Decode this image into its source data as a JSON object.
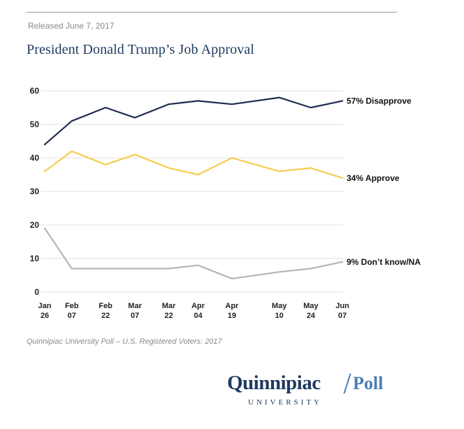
{
  "header": {
    "released": "Released June 7, 2017",
    "title": "President Donald Trump’s Job Approval"
  },
  "footer": {
    "source": "Quinnipiac University Poll – U.S. Registered Voters: 2017",
    "logo_word": "Quinnipiac",
    "logo_poll": "Poll",
    "logo_sub": "UNIVERSITY"
  },
  "colors": {
    "disapprove": "#1f2d4f",
    "approve": "#f6cd4c",
    "dontknow": "#b5b5b5",
    "grid": "#e2e2e2",
    "axis_text": "#222222"
  },
  "chart_data": {
    "type": "line",
    "title": "President Donald Trump’s Job Approval",
    "xlabel": "",
    "ylabel": "",
    "ylim": [
      0,
      60
    ],
    "yticks": [
      0,
      10,
      20,
      30,
      40,
      50,
      60
    ],
    "grid": true,
    "x_dates": [
      "2017-01-26",
      "2017-02-07",
      "2017-02-22",
      "2017-03-07",
      "2017-03-22",
      "2017-04-04",
      "2017-04-19",
      "2017-05-10",
      "2017-05-24",
      "2017-06-07"
    ],
    "x_labels": [
      [
        "Jan",
        "26"
      ],
      [
        "Feb",
        "07"
      ],
      [
        "Feb",
        "22"
      ],
      [
        "Mar",
        "07"
      ],
      [
        "Mar",
        "22"
      ],
      [
        "Apr",
        "04"
      ],
      [
        "Apr",
        "19"
      ],
      [
        "May",
        "10"
      ],
      [
        "May",
        "24"
      ],
      [
        "Jun",
        "07"
      ]
    ],
    "series": [
      {
        "name": "Disapprove",
        "label": "57% Disapprove",
        "color_key": "disapprove",
        "values": [
          44,
          51,
          55,
          52,
          56,
          57,
          56,
          58,
          55,
          57
        ]
      },
      {
        "name": "Approve",
        "label": "34% Approve",
        "color_key": "approve",
        "values": [
          36,
          42,
          38,
          41,
          37,
          35,
          40,
          36,
          37,
          34
        ]
      },
      {
        "name": "Don't know/NA",
        "label": "9% Don’t know/NA",
        "color_key": "dontknow",
        "values": [
          19,
          7,
          7,
          7,
          7,
          8,
          4,
          6,
          7,
          9
        ]
      }
    ]
  }
}
